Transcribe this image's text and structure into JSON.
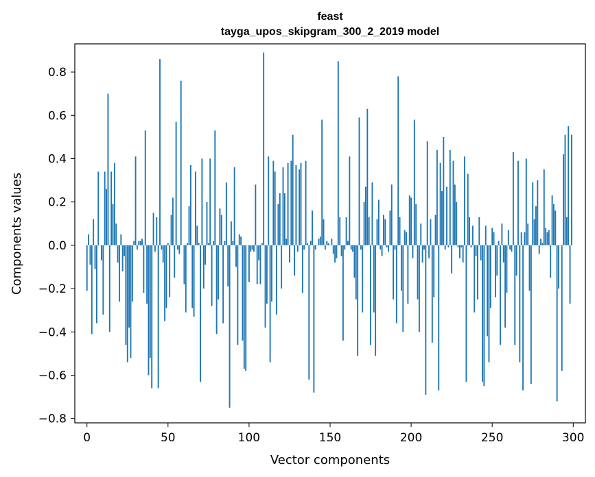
{
  "chart_data": {
    "type": "bar",
    "title": "feast",
    "subtitle": "tayga_upos_skipgram_300_2_2019 model",
    "xlabel": "Vector components",
    "ylabel": "Components values",
    "xlim": [
      -7.5,
      307.5
    ],
    "ylim": [
      -0.82,
      0.93
    ],
    "xticks": [
      0,
      50,
      100,
      150,
      200,
      250,
      300
    ],
    "yticks": [
      -0.8,
      -0.6,
      -0.4,
      -0.2,
      0.0,
      0.2,
      0.4,
      0.6,
      0.8
    ],
    "xtick_labels": [
      "0",
      "50",
      "100",
      "150",
      "200",
      "250",
      "300"
    ],
    "ytick_labels": [
      "−0.8",
      "−0.6",
      "−0.4",
      "−0.2",
      "0.0",
      "0.2",
      "0.4",
      "0.6",
      "0.8"
    ],
    "bar_color": "#1f77b4",
    "values": [
      -0.21,
      0.05,
      -0.09,
      -0.41,
      0.12,
      -0.11,
      -0.36,
      0.34,
      0.0,
      -0.07,
      -0.32,
      0.34,
      0.26,
      0.7,
      -0.4,
      0.34,
      0.19,
      0.38,
      0.1,
      -0.08,
      -0.26,
      0.05,
      -0.12,
      -0.05,
      -0.46,
      -0.54,
      -0.38,
      -0.52,
      -0.26,
      0.02,
      0.41,
      -0.02,
      0.02,
      0.02,
      0.03,
      -0.22,
      0.53,
      -0.27,
      -0.6,
      -0.52,
      -0.66,
      0.15,
      -0.03,
      0.13,
      -0.66,
      0.86,
      -0.02,
      -0.08,
      -0.35,
      -0.29,
      0.01,
      -0.24,
      0.14,
      0.22,
      -0.15,
      0.57,
      -0.02,
      -0.04,
      0.76,
      0.0,
      -0.18,
      -0.31,
      0.01,
      0.18,
      0.37,
      -0.29,
      -0.33,
      0.34,
      0.09,
      0.01,
      -0.63,
      0.4,
      -0.2,
      -0.09,
      0.2,
      0.01,
      0.4,
      -0.28,
      0.02,
      0.53,
      -0.41,
      -0.25,
      0.17,
      0.14,
      -0.36,
      0.02,
      0.29,
      -0.19,
      -0.75,
      0.11,
      0.02,
      0.36,
      -0.1,
      -0.46,
      0.05,
      0.04,
      -0.44,
      -0.57,
      -0.58,
      0.0,
      -0.17,
      -0.03,
      -0.02,
      -0.03,
      0.28,
      -0.18,
      -0.07,
      -0.18,
      0.01,
      0.89,
      -0.38,
      -0.27,
      0.41,
      -0.54,
      -0.26,
      0.39,
      0.34,
      -0.32,
      0.19,
      0.24,
      -0.2,
      0.36,
      0.24,
      0.03,
      0.38,
      -0.08,
      0.39,
      0.51,
      -0.14,
      0.37,
      -0.03,
      0.35,
      0.38,
      -0.22,
      -0.02,
      0.39,
      0.01,
      -0.62,
      0.02,
      0.16,
      -0.68,
      -0.02,
      0.0,
      0.03,
      0.04,
      0.58,
      0.12,
      -0.02,
      0.02,
      0.01,
      0.0,
      0.03,
      -0.04,
      -0.08,
      -0.06,
      0.85,
      0.13,
      -0.05,
      -0.44,
      -0.02,
      0.13,
      0.02,
      0.41,
      -0.02,
      -0.03,
      -0.15,
      -0.25,
      -0.51,
      0.59,
      -0.02,
      -0.31,
      0.2,
      0.27,
      0.63,
      0.13,
      -0.46,
      0.29,
      -0.31,
      -0.51,
      0.12,
      0.21,
      -0.02,
      -0.05,
      0.14,
      0.12,
      -0.01,
      -0.03,
      0.16,
      0.28,
      -0.25,
      -0.02,
      -0.36,
      0.78,
      0.13,
      -0.21,
      -0.4,
      0.07,
      0.06,
      -0.27,
      0.23,
      0.22,
      -0.06,
      0.58,
      0.19,
      -0.25,
      -0.4,
      0.1,
      -0.08,
      -0.02,
      -0.69,
      0.48,
      -0.06,
      0.12,
      -0.45,
      -0.24,
      0.14,
      0.44,
      -0.67,
      0.38,
      0.25,
      0.5,
      -0.02,
      0.27,
      -0.01,
      0.44,
      -0.13,
      0.39,
      0.28,
      0.2,
      -0.01,
      -0.06,
      -0.01,
      -0.08,
      0.41,
      -0.63,
      0.33,
      0.13,
      -0.01,
      0.09,
      -0.31,
      -0.05,
      -0.25,
      0.13,
      -0.07,
      -0.63,
      -0.65,
      0.09,
      -0.42,
      -0.54,
      -0.29,
      0.08,
      0.06,
      -0.24,
      -0.14,
      0.02,
      -0.46,
      0.1,
      -0.08,
      -0.38,
      -0.22,
      0.07,
      -0.02,
      -0.03,
      0.43,
      -0.46,
      -0.14,
      0.39,
      -0.54,
      0.06,
      -0.67,
      0.06,
      0.4,
      0.1,
      -0.21,
      -0.64,
      0.29,
      0.12,
      0.18,
      0.3,
      -0.04,
      0.03,
      0.01,
      0.35,
      0.08,
      0.06,
      0.07,
      -0.15,
      0.23,
      0.19,
      0.16,
      -0.72,
      -0.2,
      0.0,
      -0.58,
      0.42,
      0.51,
      0.13,
      0.55,
      -0.27,
      0.51
    ]
  }
}
